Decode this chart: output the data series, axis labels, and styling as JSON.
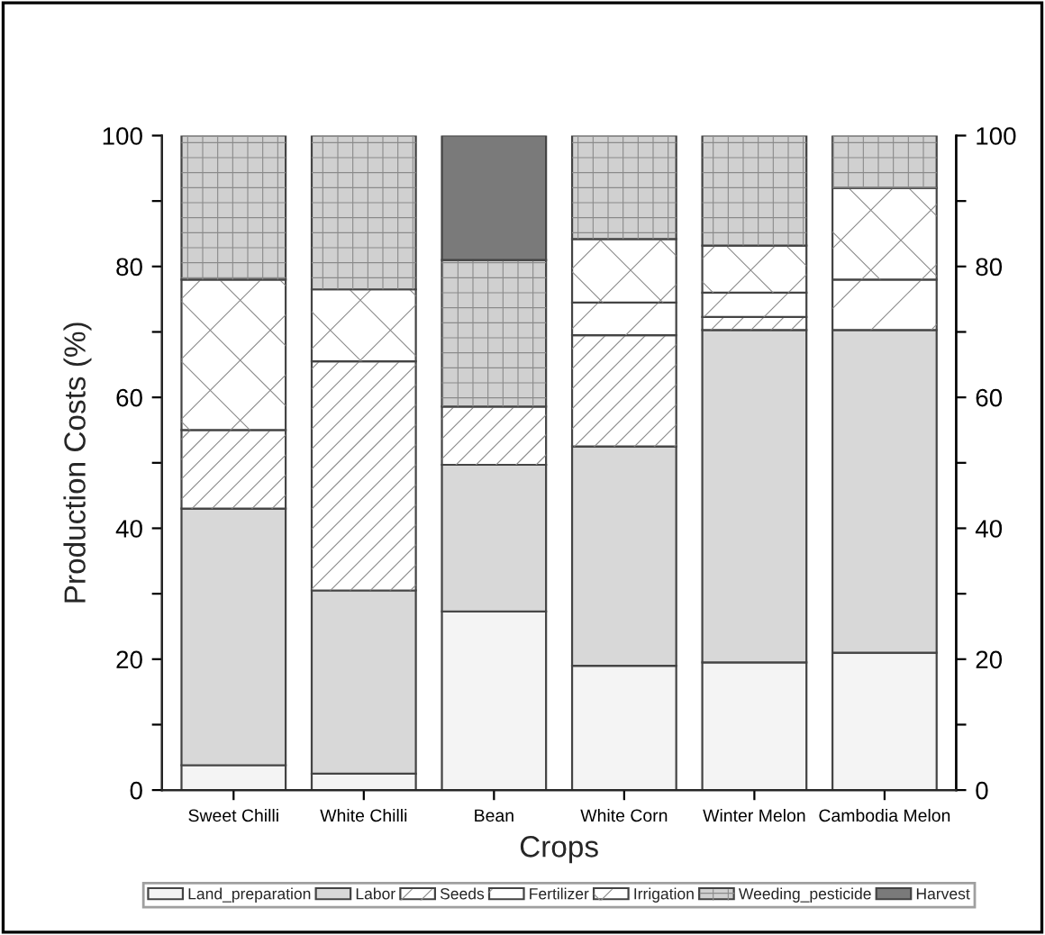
{
  "chart_data": {
    "type": "bar",
    "stacked": true,
    "xlabel": "Crops",
    "ylabel": "Production Costs (%)",
    "categories": [
      "Sweet Chilli",
      "White Chilli",
      "Bean",
      "White Corn",
      "Winter Melon",
      "Cambodia Melon"
    ],
    "series": [
      {
        "name": "Land_preparation",
        "color": "#f4f4f4",
        "values": [
          3.8,
          2.5,
          27.3,
          19,
          19.5,
          21
        ]
      },
      {
        "name": "Labor",
        "color": "#d8d8d8",
        "values": [
          39.2,
          28,
          22.4,
          33.5,
          50.8,
          49.3
        ]
      },
      {
        "name": "Seeds",
        "color": "#ffffff",
        "values": [
          12,
          35,
          8.9,
          17,
          2,
          null
        ]
      },
      {
        "name": "Fertilizer",
        "color": "#ffffff",
        "values": [
          null,
          null,
          null,
          5,
          3.7,
          7.7
        ]
      },
      {
        "name": "Irrigation",
        "color": "#ffffff",
        "values": [
          23,
          11,
          null,
          9.7,
          7.2,
          14
        ]
      },
      {
        "name": "Weeding_pesticide",
        "color": "#d0d0d0",
        "values": [
          22,
          23.5,
          22.4,
          15.8,
          16.8,
          8
        ]
      },
      {
        "name": "Harvest",
        "color": "#7a7a7a",
        "values": [
          null,
          null,
          19,
          null,
          null,
          null
        ]
      }
    ],
    "ylim": [
      0,
      100
    ],
    "yticks": [
      0,
      {
        "value": 10,
        "label": null
      },
      20,
      {
        "value": 30,
        "label": null
      },
      40,
      {
        "value": 50,
        "label": null
      },
      60,
      {
        "value": 70,
        "label": null
      },
      80,
      {
        "value": 90,
        "label": null
      },
      100
    ],
    "y2lim": [
      0,
      100
    ],
    "y2ticks": [
      0,
      {
        "value": 10,
        "label": null
      },
      20,
      {
        "value": 30,
        "label": null
      },
      40,
      {
        "value": 50,
        "label": null
      },
      60,
      {
        "value": 70,
        "label": null
      },
      80,
      {
        "value": 90,
        "label": null
      },
      100
    ],
    "legend": "bottom",
    "grid": false
  }
}
